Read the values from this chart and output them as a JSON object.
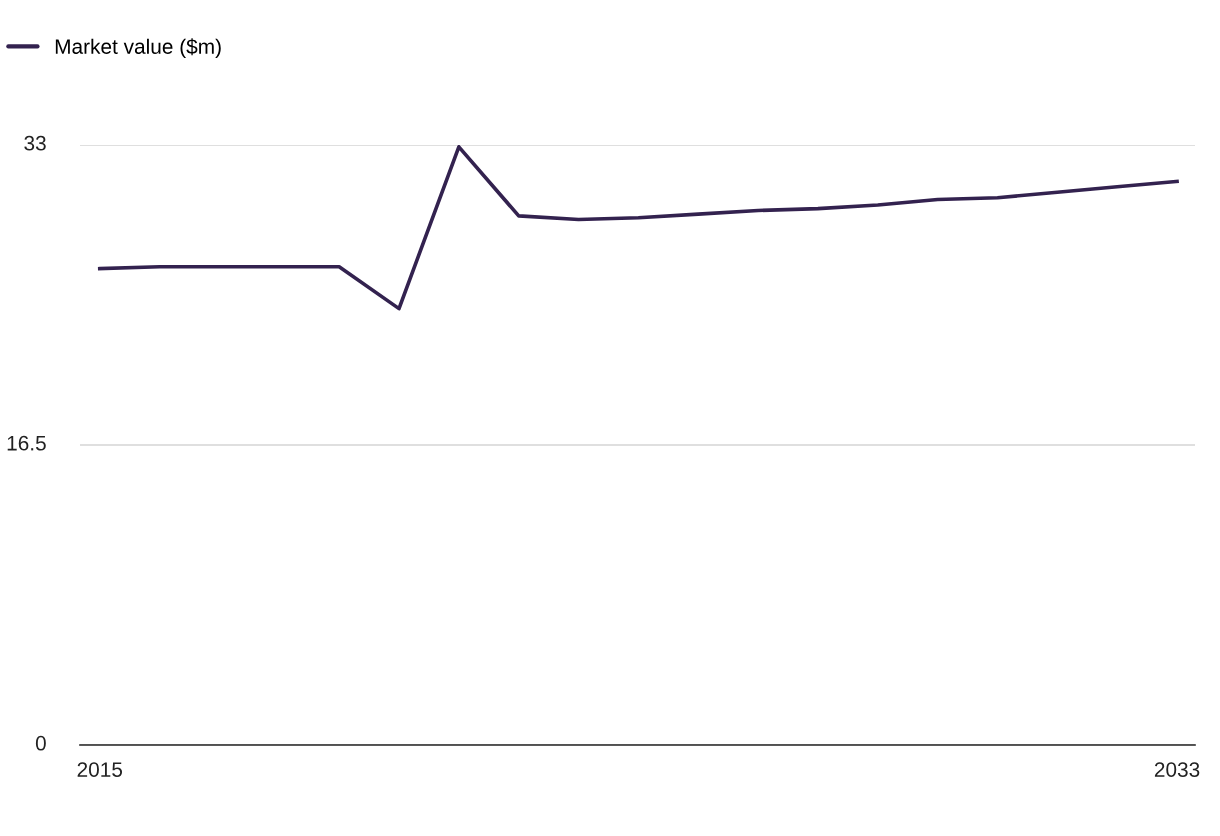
{
  "chart_data": {
    "type": "line",
    "x": [
      2015,
      2016,
      2017,
      2018,
      2019,
      2020,
      2021,
      2022,
      2023,
      2024,
      2025,
      2026,
      2027,
      2028,
      2029,
      2030,
      2031,
      2032,
      2033
    ],
    "series": [
      {
        "name": "Market value ($m)",
        "color": "#33224f",
        "values": [
          26.2,
          26.3,
          26.3,
          26.3,
          26.3,
          24.0,
          32.9,
          29.1,
          28.9,
          29.0,
          29.2,
          29.4,
          29.5,
          29.7,
          30.0,
          30.1,
          30.4,
          30.7,
          31.0
        ]
      }
    ],
    "xlim": [
      2014.67,
      2033.3
    ],
    "xticks": [
      2015,
      2033
    ],
    "ylim": [
      0,
      33
    ],
    "yticks": [
      0,
      16.5,
      33
    ],
    "grid": "y",
    "legend": "top left",
    "marker": "none",
    "line_style": "solid"
  }
}
